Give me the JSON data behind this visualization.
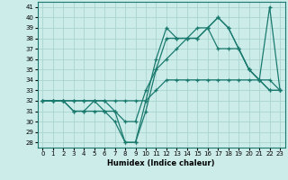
{
  "title": "",
  "xlabel": "Humidex (Indice chaleur)",
  "bg_color": "#ccecea",
  "grid_color": "#aad4d0",
  "line_color": "#1a7a6e",
  "xlim": [
    -0.5,
    23.5
  ],
  "ylim": [
    27.5,
    41.5
  ],
  "yticks": [
    28,
    29,
    30,
    31,
    32,
    33,
    34,
    35,
    36,
    37,
    38,
    39,
    40,
    41
  ],
  "xticks": [
    0,
    1,
    2,
    3,
    4,
    5,
    6,
    7,
    8,
    9,
    10,
    11,
    12,
    13,
    14,
    15,
    16,
    17,
    18,
    19,
    20,
    21,
    22,
    23
  ],
  "series": [
    [
      32,
      32,
      32,
      32,
      32,
      32,
      32,
      32,
      32,
      32,
      32,
      33,
      34,
      34,
      34,
      34,
      34,
      34,
      34,
      34,
      34,
      34,
      34,
      33
    ],
    [
      32,
      32,
      32,
      31,
      31,
      31,
      31,
      30,
      28,
      28,
      31,
      35,
      38,
      38,
      38,
      38,
      39,
      40,
      39,
      37,
      35,
      34,
      33,
      33
    ],
    [
      32,
      32,
      32,
      31,
      31,
      32,
      32,
      31,
      28,
      28,
      32,
      36,
      39,
      38,
      38,
      39,
      39,
      40,
      39,
      37,
      35,
      34,
      33,
      33
    ],
    [
      32,
      32,
      32,
      32,
      32,
      32,
      31,
      31,
      30,
      30,
      33,
      35,
      36,
      37,
      38,
      38,
      39,
      37,
      37,
      37,
      35,
      34,
      41,
      33
    ]
  ]
}
